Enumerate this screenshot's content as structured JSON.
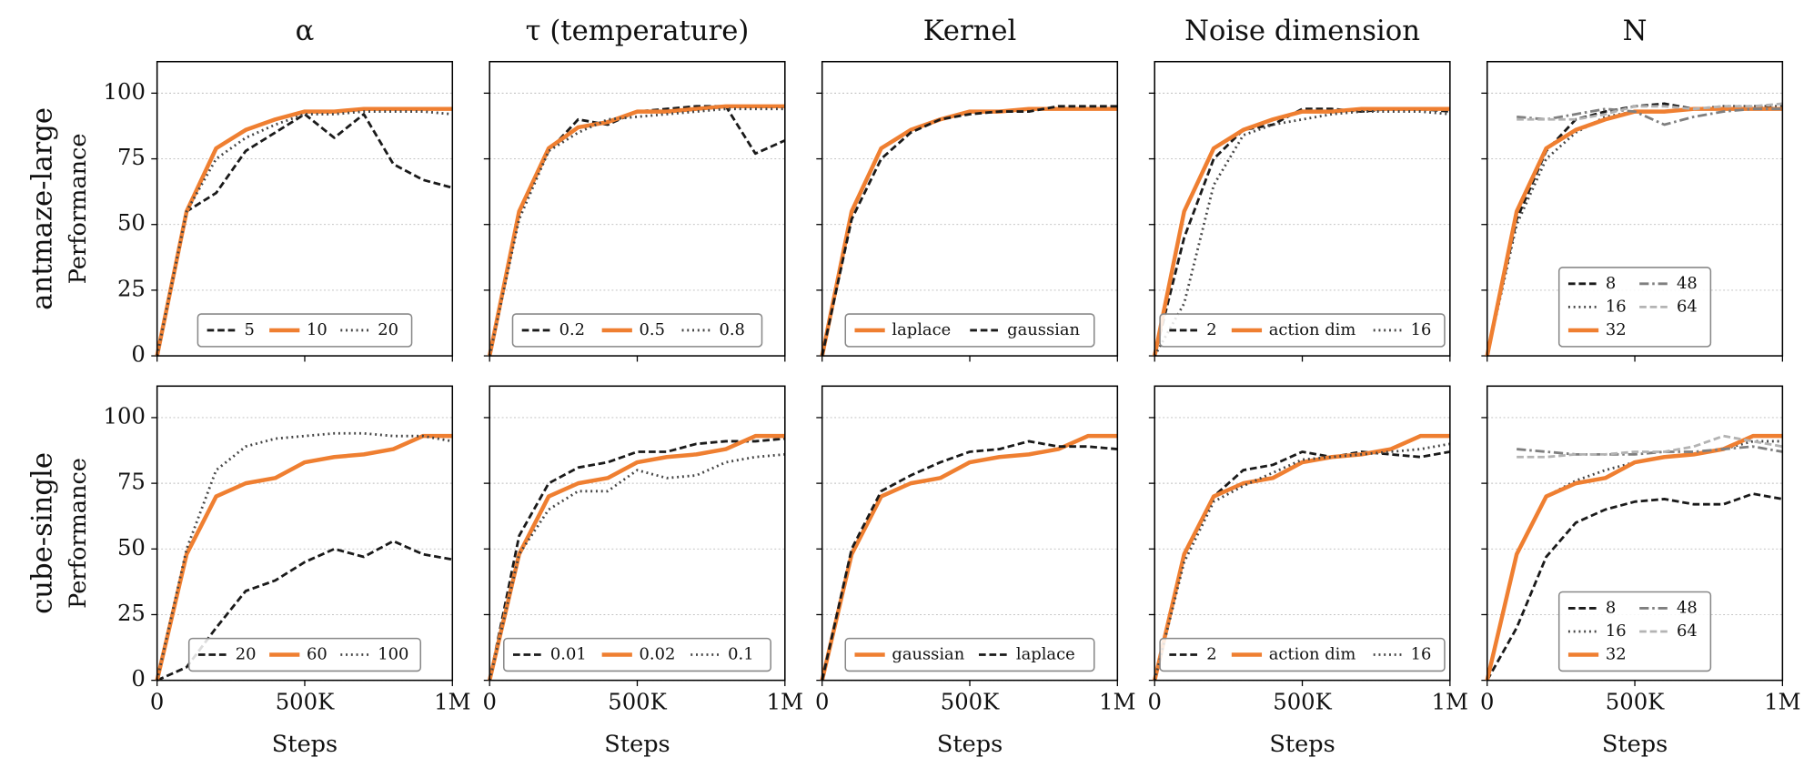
{
  "chart_data": [
    {
      "type": "line",
      "title": "α",
      "row_label": "antmaze-large",
      "ylabel": "Performance",
      "x": [
        0,
        100000,
        200000,
        300000,
        400000,
        500000,
        600000,
        700000,
        800000,
        900000,
        1000000
      ],
      "xlim": [
        0,
        1000000
      ],
      "ylim": [
        0,
        112
      ],
      "xticks": [
        0,
        {
          "value": 500000,
          "label": "500K"
        },
        {
          "value": 1000000,
          "label": "1M"
        }
      ],
      "yticks": [
        0,
        25,
        50,
        75,
        100
      ],
      "grid": true,
      "x_tick_labels": false,
      "y_tick_labels": true,
      "legend": "lower center",
      "legend_columns": 3,
      "series": [
        {
          "name": "5",
          "color": "#1a1a1a",
          "dash": "dashed",
          "values": [
            0,
            55,
            62,
            78,
            85,
            92,
            83,
            92,
            73,
            67,
            64
          ]
        },
        {
          "name": "10",
          "color": "#ef7f31",
          "dash": "solid",
          "values": [
            0,
            55,
            79,
            86,
            90,
            93,
            93,
            94,
            94,
            94,
            94
          ]
        },
        {
          "name": "20",
          "color": "#444444",
          "dash": "dotted",
          "values": [
            0,
            55,
            75,
            83,
            88,
            92,
            92,
            93,
            93,
            93,
            92
          ]
        }
      ]
    },
    {
      "type": "line",
      "title": "τ (temperature)",
      "x": [
        0,
        100000,
        200000,
        300000,
        400000,
        500000,
        600000,
        700000,
        800000,
        900000,
        1000000
      ],
      "xlim": [
        0,
        1000000
      ],
      "ylim": [
        0,
        112
      ],
      "xticks": [
        0,
        {
          "value": 500000,
          "label": "500K"
        },
        {
          "value": 1000000,
          "label": "1M"
        }
      ],
      "yticks": [
        0,
        25,
        50,
        75,
        100
      ],
      "grid": true,
      "x_tick_labels": false,
      "y_tick_labels": false,
      "legend": "lower center",
      "legend_columns": 3,
      "series": [
        {
          "name": "0.2",
          "color": "#1a1a1a",
          "dash": "dashed",
          "values": [
            0,
            55,
            78,
            90,
            88,
            93,
            94,
            95,
            95,
            77,
            82
          ]
        },
        {
          "name": "0.5",
          "color": "#ef7f31",
          "dash": "solid",
          "values": [
            0,
            55,
            79,
            87,
            89,
            93,
            93,
            94,
            95,
            95,
            95
          ]
        },
        {
          "name": "0.8",
          "color": "#444444",
          "dash": "dotted",
          "values": [
            0,
            52,
            78,
            85,
            90,
            91,
            92,
            93,
            94,
            94,
            94
          ]
        }
      ]
    },
    {
      "type": "line",
      "title": "Kernel",
      "x": [
        0,
        100000,
        200000,
        300000,
        400000,
        500000,
        600000,
        700000,
        800000,
        900000,
        1000000
      ],
      "xlim": [
        0,
        1000000
      ],
      "ylim": [
        0,
        112
      ],
      "xticks": [
        0,
        {
          "value": 500000,
          "label": "500K"
        },
        {
          "value": 1000000,
          "label": "1M"
        }
      ],
      "yticks": [
        0,
        25,
        50,
        75,
        100
      ],
      "grid": true,
      "x_tick_labels": false,
      "y_tick_labels": false,
      "legend": "lower center",
      "legend_columns": 2,
      "series": [
        {
          "name": "laplace",
          "color": "#ef7f31",
          "dash": "solid",
          "values": [
            0,
            55,
            79,
            86,
            90,
            93,
            93,
            94,
            94,
            94,
            94
          ]
        },
        {
          "name": "gaussian",
          "color": "#1a1a1a",
          "dash": "dashed",
          "values": [
            0,
            52,
            75,
            85,
            90,
            92,
            93,
            93,
            95,
            95,
            95
          ]
        }
      ]
    },
    {
      "type": "line",
      "title": "Noise dimension",
      "x": [
        0,
        100000,
        200000,
        300000,
        400000,
        500000,
        600000,
        700000,
        800000,
        900000,
        1000000
      ],
      "xlim": [
        0,
        1000000
      ],
      "ylim": [
        0,
        112
      ],
      "xticks": [
        0,
        {
          "value": 500000,
          "label": "500K"
        },
        {
          "value": 1000000,
          "label": "1M"
        }
      ],
      "yticks": [
        0,
        25,
        50,
        75,
        100
      ],
      "grid": true,
      "x_tick_labels": false,
      "y_tick_labels": false,
      "legend": "lower center",
      "legend_columns": 3,
      "series": [
        {
          "name": "2",
          "color": "#1a1a1a",
          "dash": "dashed",
          "values": [
            0,
            45,
            75,
            86,
            88,
            94,
            94,
            93,
            94,
            94,
            93
          ]
        },
        {
          "name": "action dim",
          "color": "#ef7f31",
          "dash": "solid",
          "values": [
            0,
            55,
            79,
            86,
            90,
            93,
            93,
            94,
            94,
            94,
            94
          ]
        },
        {
          "name": "16",
          "color": "#444444",
          "dash": "dotted",
          "values": [
            0,
            20,
            65,
            84,
            88,
            90,
            92,
            93,
            93,
            93,
            92
          ]
        }
      ]
    },
    {
      "type": "line",
      "title": "N",
      "x": [
        0,
        100000,
        200000,
        300000,
        400000,
        500000,
        600000,
        700000,
        800000,
        900000,
        1000000
      ],
      "xlim": [
        0,
        1000000
      ],
      "ylim": [
        0,
        112
      ],
      "xticks": [
        0,
        {
          "value": 500000,
          "label": "500K"
        },
        {
          "value": 1000000,
          "label": "1M"
        }
      ],
      "yticks": [
        0,
        25,
        50,
        75,
        100
      ],
      "grid": true,
      "x_tick_labels": false,
      "y_tick_labels": false,
      "legend": "lower center",
      "legend_columns": 2,
      "series": [
        {
          "name": "8",
          "color": "#1a1a1a",
          "dash": "dashed",
          "values": [
            0,
            52,
            78,
            90,
            93,
            95,
            96,
            94,
            94,
            95,
            94
          ]
        },
        {
          "name": "16",
          "color": "#444444",
          "dash": "dotted",
          "values": [
            0,
            50,
            75,
            85,
            91,
            93,
            93,
            94,
            95,
            95,
            95
          ]
        },
        {
          "name": "32",
          "color": "#ef7f31",
          "dash": "solid",
          "values": [
            0,
            55,
            79,
            86,
            90,
            93,
            93,
            94,
            94,
            94,
            94
          ]
        },
        {
          "name": "48",
          "color": "#7f7f7f",
          "dash": "dashdot",
          "values": [
            null,
            91,
            90,
            92,
            94,
            93,
            88,
            91,
            93,
            94,
            94
          ]
        },
        {
          "name": "64",
          "color": "#b3b3b3",
          "dash": "dashed",
          "values": [
            null,
            90,
            90,
            90,
            92,
            95,
            95,
            94,
            95,
            95,
            96
          ]
        }
      ]
    },
    {
      "type": "line",
      "row_label": "cube-single",
      "ylabel": "Performance",
      "xlabel": "Steps",
      "x": [
        0,
        100000,
        200000,
        300000,
        400000,
        500000,
        600000,
        700000,
        800000,
        900000,
        1000000
      ],
      "xlim": [
        0,
        1000000
      ],
      "ylim": [
        0,
        112
      ],
      "xticks": [
        0,
        {
          "value": 500000,
          "label": "500K"
        },
        {
          "value": 1000000,
          "label": "1M"
        }
      ],
      "yticks": [
        0,
        25,
        50,
        75,
        100
      ],
      "grid": true,
      "x_tick_labels": true,
      "y_tick_labels": true,
      "legend": "lower center",
      "legend_columns": 3,
      "series": [
        {
          "name": "20",
          "color": "#1a1a1a",
          "dash": "dashed",
          "values": [
            0,
            5,
            20,
            34,
            38,
            45,
            50,
            47,
            53,
            48,
            46
          ]
        },
        {
          "name": "60",
          "color": "#ef7f31",
          "dash": "solid",
          "values": [
            0,
            48,
            70,
            75,
            77,
            83,
            85,
            86,
            88,
            93,
            93
          ]
        },
        {
          "name": "100",
          "color": "#444444",
          "dash": "dotted",
          "values": [
            0,
            50,
            80,
            89,
            92,
            93,
            94,
            94,
            93,
            93,
            91
          ]
        }
      ]
    },
    {
      "type": "line",
      "xlabel": "Steps",
      "x": [
        0,
        100000,
        200000,
        300000,
        400000,
        500000,
        600000,
        700000,
        800000,
        900000,
        1000000
      ],
      "xlim": [
        0,
        1000000
      ],
      "ylim": [
        0,
        112
      ],
      "xticks": [
        0,
        {
          "value": 500000,
          "label": "500K"
        },
        {
          "value": 1000000,
          "label": "1M"
        }
      ],
      "yticks": [
        0,
        25,
        50,
        75,
        100
      ],
      "grid": true,
      "x_tick_labels": true,
      "y_tick_labels": false,
      "legend": "lower center",
      "legend_columns": 3,
      "series": [
        {
          "name": "0.01",
          "color": "#1a1a1a",
          "dash": "dashed",
          "values": [
            0,
            55,
            75,
            81,
            83,
            87,
            87,
            90,
            91,
            91,
            92
          ]
        },
        {
          "name": "0.02",
          "color": "#ef7f31",
          "dash": "solid",
          "values": [
            0,
            48,
            70,
            75,
            77,
            83,
            85,
            86,
            88,
            93,
            93
          ]
        },
        {
          "name": "0.1",
          "color": "#444444",
          "dash": "dotted",
          "values": [
            0,
            48,
            65,
            72,
            72,
            80,
            77,
            78,
            83,
            85,
            86
          ]
        }
      ]
    },
    {
      "type": "line",
      "xlabel": "Steps",
      "x": [
        0,
        100000,
        200000,
        300000,
        400000,
        500000,
        600000,
        700000,
        800000,
        900000,
        1000000
      ],
      "xlim": [
        0,
        1000000
      ],
      "ylim": [
        0,
        112
      ],
      "xticks": [
        0,
        {
          "value": 500000,
          "label": "500K"
        },
        {
          "value": 1000000,
          "label": "1M"
        }
      ],
      "yticks": [
        0,
        25,
        50,
        75,
        100
      ],
      "grid": true,
      "x_tick_labels": true,
      "y_tick_labels": false,
      "legend": "lower center",
      "legend_columns": 2,
      "series": [
        {
          "name": "gaussian",
          "color": "#ef7f31",
          "dash": "solid",
          "values": [
            0,
            48,
            70,
            75,
            77,
            83,
            85,
            86,
            88,
            93,
            93
          ]
        },
        {
          "name": "laplace",
          "color": "#1a1a1a",
          "dash": "dashed",
          "values": [
            0,
            50,
            72,
            78,
            83,
            87,
            88,
            91,
            89,
            89,
            88
          ]
        }
      ]
    },
    {
      "type": "line",
      "xlabel": "Steps",
      "x": [
        0,
        100000,
        200000,
        300000,
        400000,
        500000,
        600000,
        700000,
        800000,
        900000,
        1000000
      ],
      "xlim": [
        0,
        1000000
      ],
      "ylim": [
        0,
        112
      ],
      "xticks": [
        0,
        {
          "value": 500000,
          "label": "500K"
        },
        {
          "value": 1000000,
          "label": "1M"
        }
      ],
      "yticks": [
        0,
        25,
        50,
        75,
        100
      ],
      "grid": true,
      "x_tick_labels": true,
      "y_tick_labels": false,
      "legend": "lower center",
      "legend_columns": 3,
      "series": [
        {
          "name": "2",
          "color": "#1a1a1a",
          "dash": "dashed",
          "values": [
            0,
            48,
            70,
            80,
            82,
            87,
            85,
            87,
            86,
            85,
            87
          ]
        },
        {
          "name": "action dim",
          "color": "#ef7f31",
          "dash": "solid",
          "values": [
            0,
            48,
            70,
            75,
            77,
            83,
            85,
            86,
            88,
            93,
            93
          ]
        },
        {
          "name": "16",
          "color": "#444444",
          "dash": "dotted",
          "values": [
            0,
            45,
            68,
            74,
            79,
            84,
            85,
            86,
            87,
            88,
            90
          ]
        }
      ]
    },
    {
      "type": "line",
      "xlabel": "Steps",
      "x": [
        0,
        100000,
        200000,
        300000,
        400000,
        500000,
        600000,
        700000,
        800000,
        900000,
        1000000
      ],
      "xlim": [
        0,
        1000000
      ],
      "ylim": [
        0,
        112
      ],
      "xticks": [
        0,
        {
          "value": 500000,
          "label": "500K"
        },
        {
          "value": 1000000,
          "label": "1M"
        }
      ],
      "yticks": [
        0,
        25,
        50,
        75,
        100
      ],
      "grid": true,
      "x_tick_labels": true,
      "y_tick_labels": false,
      "legend": "lower center",
      "legend_columns": 2,
      "series": [
        {
          "name": "8",
          "color": "#1a1a1a",
          "dash": "dashed",
          "values": [
            0,
            20,
            47,
            60,
            65,
            68,
            69,
            67,
            67,
            71,
            69
          ]
        },
        {
          "name": "16",
          "color": "#444444",
          "dash": "dotted",
          "values": [
            0,
            48,
            70,
            76,
            80,
            83,
            85,
            86,
            88,
            91,
            91
          ]
        },
        {
          "name": "32",
          "color": "#ef7f31",
          "dash": "solid",
          "values": [
            0,
            48,
            70,
            75,
            77,
            83,
            85,
            86,
            88,
            93,
            93
          ]
        },
        {
          "name": "48",
          "color": "#7f7f7f",
          "dash": "dashdot",
          "values": [
            null,
            88,
            87,
            86,
            86,
            86,
            87,
            87,
            88,
            89,
            87
          ]
        },
        {
          "name": "64",
          "color": "#b3b3b3",
          "dash": "dashed",
          "values": [
            null,
            85,
            85,
            86,
            86,
            87,
            87,
            89,
            93,
            91,
            89
          ]
        }
      ]
    }
  ]
}
